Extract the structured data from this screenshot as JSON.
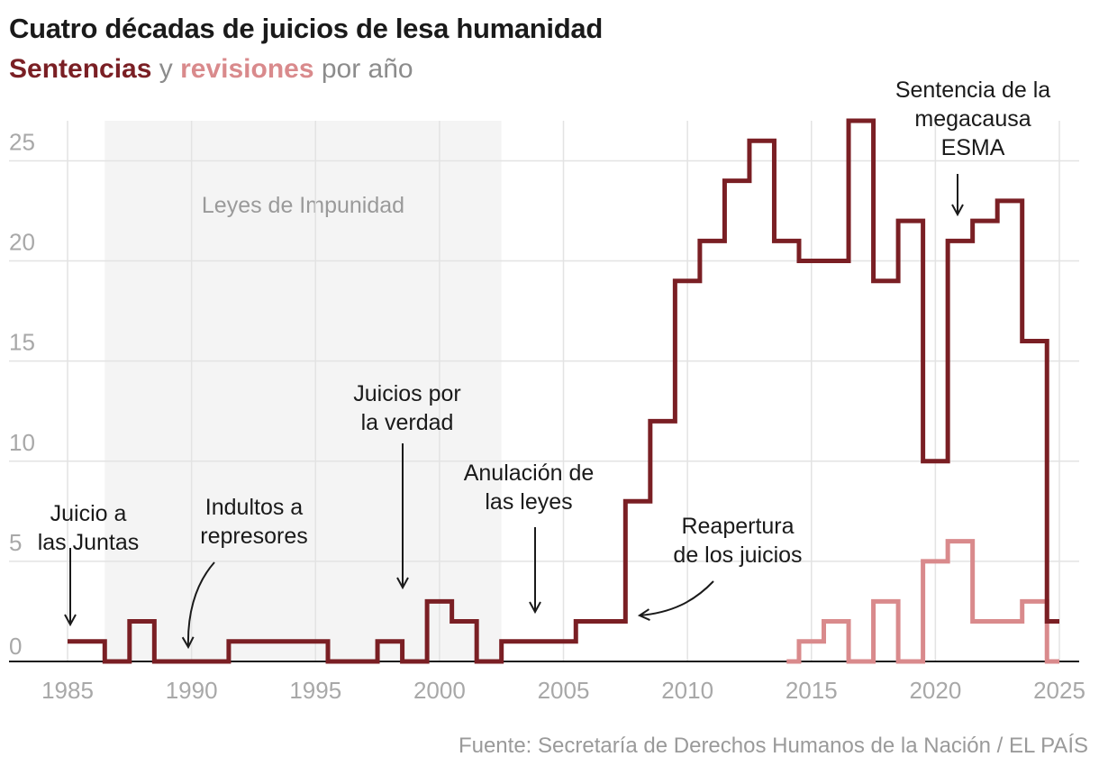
{
  "title": "Cuatro décadas de juicios de lesa humanidad",
  "subtitle": {
    "part1": "Sentencias",
    "part2": " y ",
    "part3": "revisiones",
    "part4": " por año"
  },
  "source": "Fuente: Secretaría de Derechos Humanos de la Nación / EL PAÍS",
  "chart_data": {
    "type": "line",
    "step": true,
    "xlabel": "",
    "ylabel": "",
    "xlim": [
      1985,
      2025
    ],
    "ylim": [
      0,
      27
    ],
    "x_ticks": [
      1985,
      1990,
      1995,
      2000,
      2005,
      2010,
      2015,
      2020,
      2025
    ],
    "y_ticks": [
      0,
      5,
      10,
      15,
      20,
      25
    ],
    "grid": true,
    "shaded_region": {
      "label": "Leyes de Impunidad",
      "from": 1987,
      "to": 2003
    },
    "series": [
      {
        "name": "Sentencias",
        "color": "#7a1f24",
        "x": [
          1985,
          1986,
          1987,
          1988,
          1989,
          1990,
          1991,
          1992,
          1993,
          1994,
          1995,
          1996,
          1997,
          1998,
          1999,
          2000,
          2001,
          2002,
          2003,
          2004,
          2005,
          2006,
          2007,
          2008,
          2009,
          2010,
          2011,
          2012,
          2013,
          2014,
          2015,
          2016,
          2017,
          2018,
          2019,
          2020,
          2021,
          2022,
          2023,
          2024,
          2025
        ],
        "values": [
          1,
          1,
          0,
          2,
          0,
          0,
          0,
          1,
          1,
          1,
          1,
          0,
          0,
          1,
          0,
          3,
          2,
          0,
          1,
          1,
          1,
          2,
          2,
          8,
          12,
          19,
          21,
          24,
          26,
          21,
          20,
          20,
          27,
          19,
          22,
          10,
          21,
          22,
          23,
          16,
          2
        ]
      },
      {
        "name": "Revisiones",
        "color": "#d98a8c",
        "x": [
          2014,
          2015,
          2016,
          2017,
          2018,
          2019,
          2020,
          2021,
          2022,
          2023,
          2024,
          2025
        ],
        "values": [
          0,
          1,
          2,
          0,
          3,
          0,
          5,
          6,
          2,
          2,
          3,
          0
        ]
      }
    ],
    "annotations": [
      {
        "text_lines": [
          "Juicio a",
          "las Juntas"
        ],
        "x": 1985,
        "y": 1
      },
      {
        "text_lines": [
          "Indultos a",
          "represores"
        ],
        "x": 1990,
        "y": 0
      },
      {
        "text_lines": [
          "Juicios por",
          "la verdad"
        ],
        "x": 1998.5,
        "y": 3
      },
      {
        "text_lines": [
          "Anulación de",
          "las leyes"
        ],
        "x": 2003.8,
        "y": 2
      },
      {
        "text_lines": [
          "Reapertura",
          "de los juicios"
        ],
        "x": 2007.5,
        "y": 2
      },
      {
        "text_lines": [
          "Sentencia de la",
          "megacausa",
          "ESMA"
        ],
        "x": 2021,
        "y": 22
      }
    ]
  }
}
